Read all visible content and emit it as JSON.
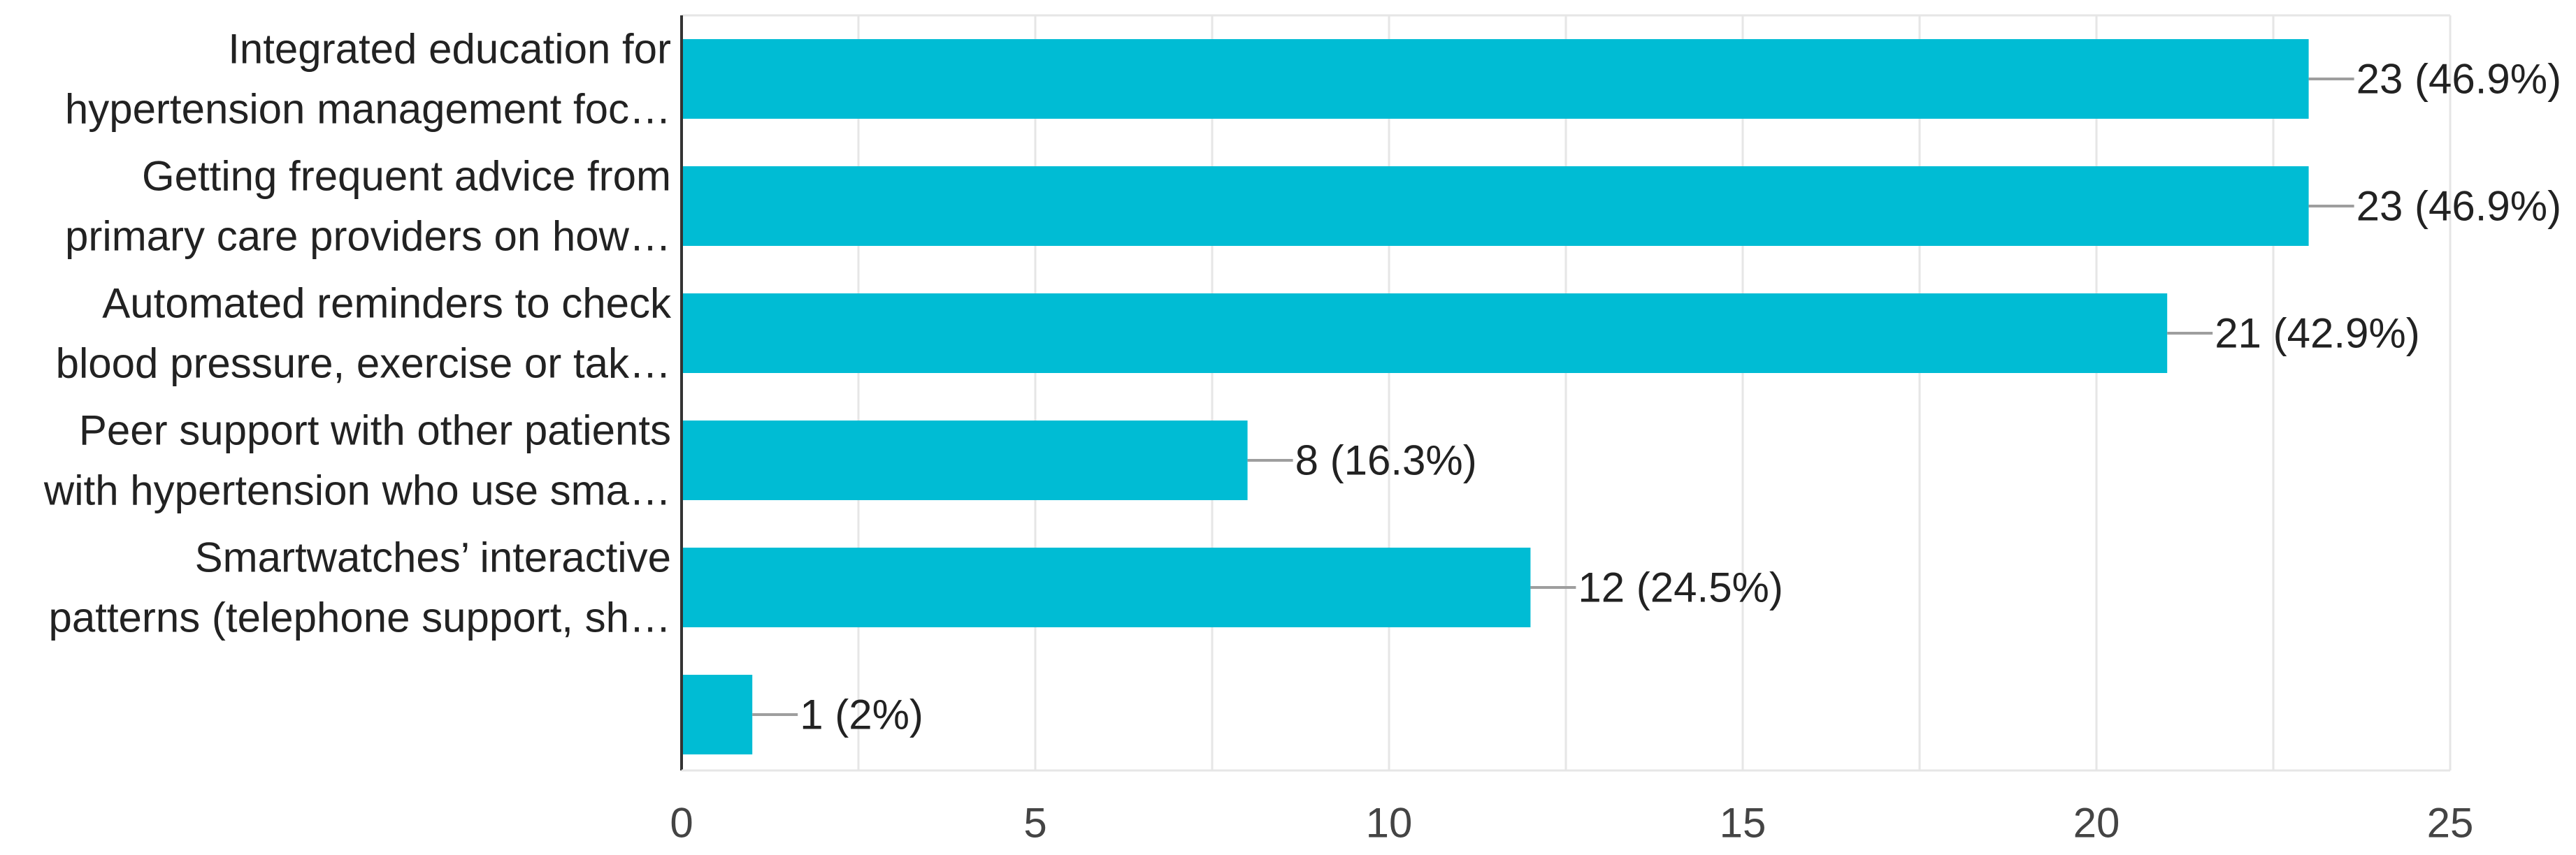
{
  "chart_data": {
    "type": "bar",
    "orientation": "horizontal",
    "categories": [
      [
        "Integrated education for",
        "hypertension management foc…"
      ],
      [
        "Getting frequent advice from",
        "primary care providers on how…"
      ],
      [
        "Automated reminders to check",
        "blood pressure, exercise or tak…"
      ],
      [
        "Peer support with other patients",
        "with hypertension who use sma…"
      ],
      [
        "Smartwatches’ interactive",
        "patterns (telephone support, sh…"
      ],
      [
        ""
      ]
    ],
    "values": [
      23,
      23,
      21,
      8,
      12,
      1
    ],
    "data_labels": [
      "23 (46.9%)",
      "23 (46.9%)",
      "21 (42.9%)",
      "8 (16.3%)",
      "12 (24.5%)",
      "1 (2%)"
    ],
    "xlim": [
      0,
      25
    ],
    "xticks": [
      0,
      5,
      10,
      15,
      20,
      25
    ],
    "grid": true,
    "minor_grid": true,
    "bar_color": "#00bcd4",
    "title": "",
    "xlabel": "",
    "ylabel": ""
  }
}
